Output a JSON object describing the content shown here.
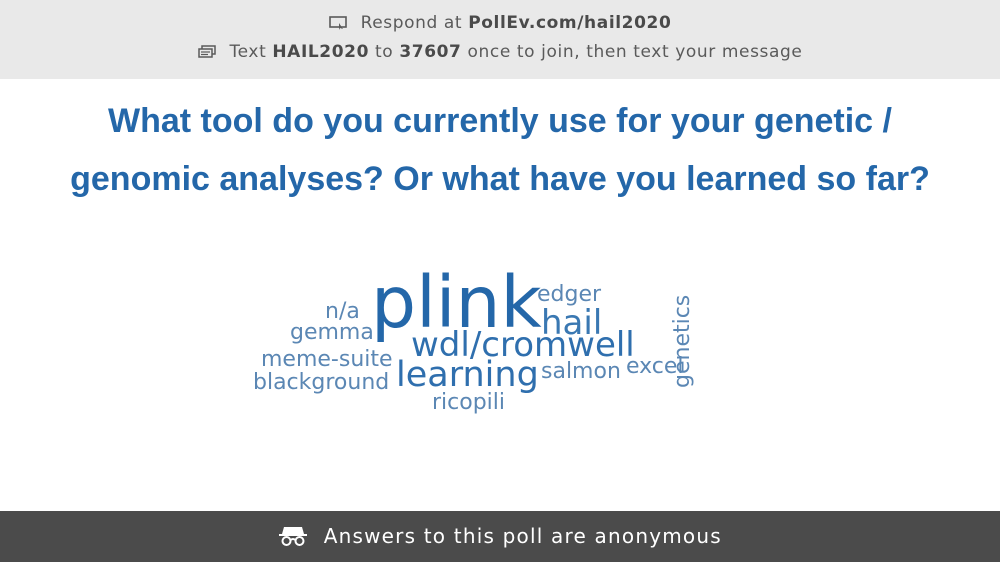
{
  "header": {
    "respond_prefix": "Respond at",
    "respond_url": "PollEv.com/hail2020",
    "text_prefix": "Text",
    "text_code": "HAIL2020",
    "text_to": "to",
    "text_number": "37607",
    "text_suffix": "once to join, then text your message",
    "icons": [
      "screen-icon",
      "sms-icon"
    ]
  },
  "question": {
    "line1": "What tool do you currently use for your genetic /",
    "line2": "genomic analyses? Or what have you learned so far?"
  },
  "word_cloud": {
    "words": [
      {
        "text": "plink",
        "rank": 1
      },
      {
        "text": "wdl/cromwell",
        "rank": 2
      },
      {
        "text": "learning",
        "rank": 2
      },
      {
        "text": "hail",
        "rank": 3
      },
      {
        "text": "edger",
        "rank": 4
      },
      {
        "text": "salmon",
        "rank": 4
      },
      {
        "text": "excel",
        "rank": 4
      },
      {
        "text": "genetics",
        "rank": 4
      },
      {
        "text": "n/a",
        "rank": 4
      },
      {
        "text": "gemma",
        "rank": 4
      },
      {
        "text": "meme-suite",
        "rank": 4
      },
      {
        "text": "blackground",
        "rank": 4
      },
      {
        "text": "ricopili",
        "rank": 4
      }
    ],
    "colors": {
      "primary": "#2467a9",
      "secondary": "#5b87b4"
    }
  },
  "footer": {
    "text": "Answers to this poll are anonymous",
    "icon": "incognito-icon"
  }
}
